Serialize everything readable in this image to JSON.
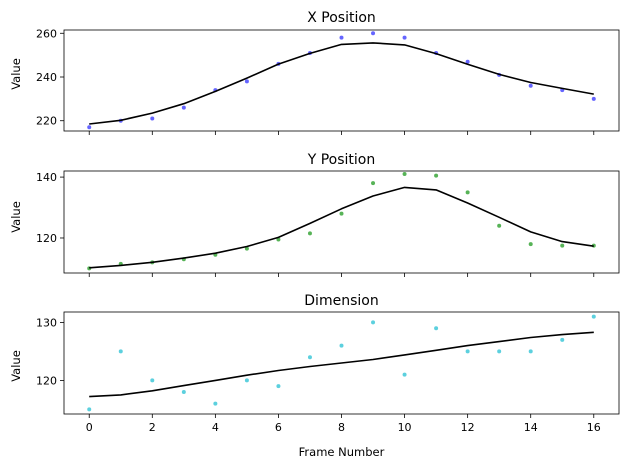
{
  "chart_data": {
    "type": "line",
    "shared_x": {
      "x": [
        0,
        1,
        2,
        3,
        4,
        5,
        6,
        7,
        8,
        9,
        10,
        11,
        12,
        13,
        14,
        15,
        16
      ],
      "xlabel": "Frame Number",
      "xlim": [
        -0.8,
        16.8
      ],
      "xticks": [
        0,
        2,
        4,
        6,
        8,
        10,
        12,
        14,
        16
      ],
      "xtick_labels": [
        "0",
        "2",
        "4",
        "6",
        "8",
        "10",
        "12",
        "14",
        "16"
      ]
    },
    "panels": [
      {
        "title": "X Position",
        "ylabel": "Value",
        "ylim": [
          215.3,
          261.5
        ],
        "yticks": [
          220,
          240,
          260
        ],
        "ytick_labels": [
          "220",
          "240",
          "260"
        ],
        "scatter_color": "#4a4aff",
        "line_color": "#000000",
        "scatter": [
          217,
          220,
          221,
          226,
          234,
          238,
          246,
          251,
          258,
          260,
          258,
          251,
          247,
          241,
          236,
          234,
          230
        ],
        "line": [
          218.5,
          220.2,
          223.5,
          227.8,
          233.4,
          239.5,
          245.9,
          250.8,
          254.9,
          255.6,
          254.7,
          250.7,
          245.8,
          241.2,
          237.5,
          234.8,
          232.2
        ]
      },
      {
        "title": "Y Position",
        "ylabel": "Value",
        "ylim": [
          108.5,
          142.0
        ],
        "yticks": [
          120,
          140
        ],
        "ytick_labels": [
          "120",
          "140"
        ],
        "scatter_color": "#3aa63a",
        "line_color": "#000000",
        "scatter": [
          110,
          111.5,
          112,
          113,
          114.5,
          116.5,
          119.5,
          121.5,
          128,
          138,
          141,
          140.5,
          135,
          124,
          118,
          117.5,
          117.5
        ],
        "line": [
          110.2,
          111.0,
          112.0,
          113.4,
          115.0,
          117.2,
          120.2,
          124.8,
          129.6,
          133.8,
          136.6,
          135.8,
          131.5,
          126.8,
          122.0,
          118.8,
          117.3
        ]
      },
      {
        "title": "Dimension",
        "ylabel": "Value",
        "ylim": [
          114.2,
          131.8
        ],
        "yticks": [
          120,
          130
        ],
        "ytick_labels": [
          "120",
          "130"
        ],
        "scatter_color": "#40c8d8",
        "line_color": "#000000",
        "scatter": [
          115,
          125,
          120,
          118,
          116,
          120,
          119,
          124,
          126,
          130,
          121,
          129,
          125,
          125,
          125,
          127,
          131
        ],
        "line": [
          117.2,
          117.5,
          118.2,
          119.1,
          120.0,
          120.9,
          121.7,
          122.4,
          123.0,
          123.6,
          124.4,
          125.2,
          126.0,
          126.7,
          127.4,
          127.9,
          128.3
        ]
      }
    ]
  }
}
